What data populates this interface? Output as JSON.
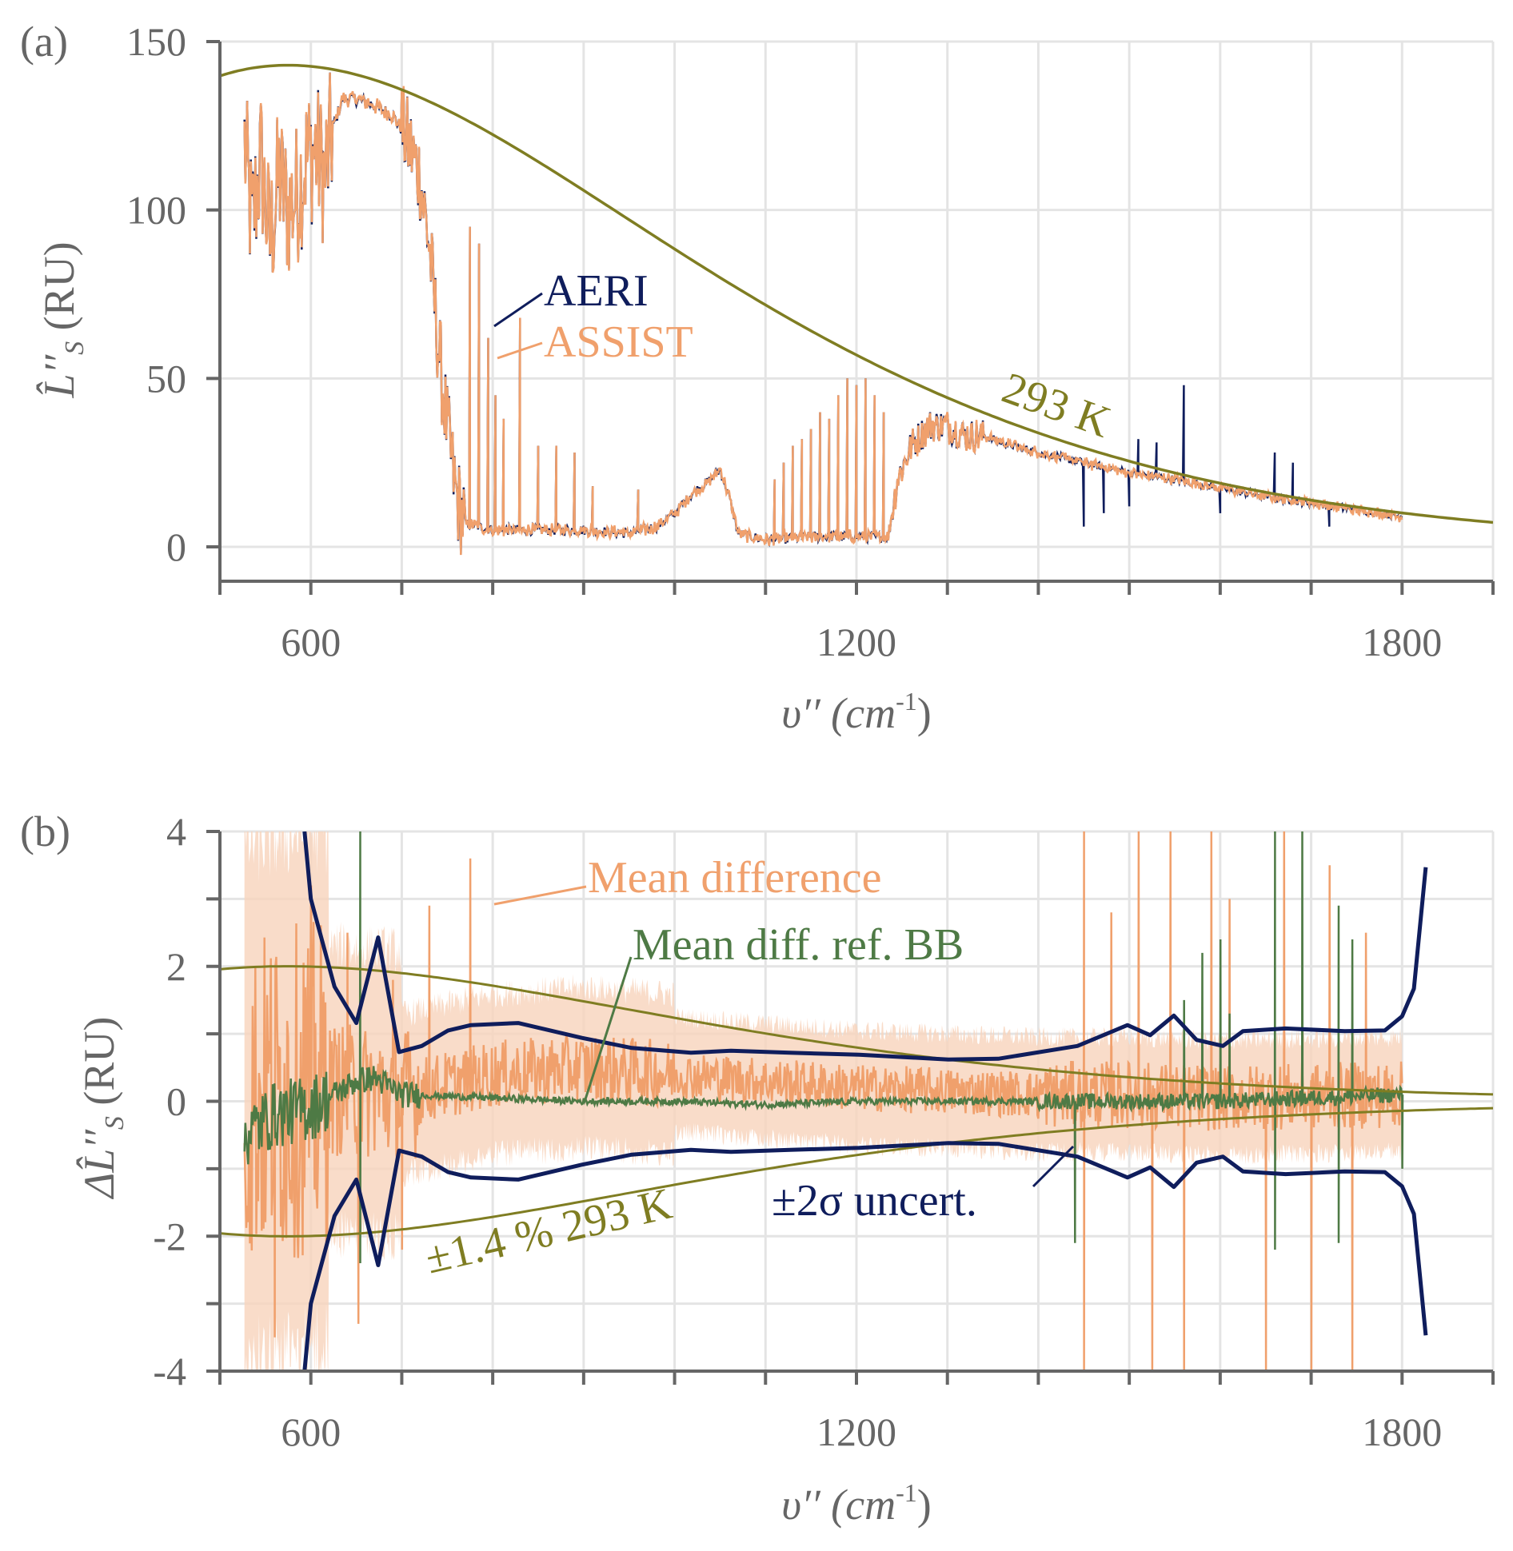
{
  "colors": {
    "aeri": "#0f1d5c",
    "assist": "#f0a06c",
    "planck": "#7f7d22",
    "ref_bb": "#4e7a45",
    "band": "#f7d3bc",
    "axis": "#666666",
    "grid": "#e4e4e4"
  },
  "chart_data": [
    {
      "panel_label": "(a)",
      "type": "line",
      "xlabel": "υ′′ (cm",
      "xlabel_sup": "-1",
      "xlabel_close": ")",
      "ylabel": "L̂′′",
      "ylabel_sub": "S",
      "ylabel_unit": " (RU)",
      "xlim": [
        500,
        1900
      ],
      "ylim": [
        -10,
        150
      ],
      "xticks": [
        600,
        1200,
        1800
      ],
      "yticks": [
        0,
        50,
        100,
        150
      ],
      "grid": true,
      "series": [
        {
          "name": "AERI",
          "baseline": [
            [
              527,
              120
            ],
            [
              535,
              95
            ],
            [
              545,
              115
            ],
            [
              555,
              90
            ],
            [
              565,
              110
            ],
            [
              575,
              100
            ],
            [
              585,
              105
            ],
            [
              595,
              115
            ],
            [
              605,
              118
            ],
            [
              615,
              110
            ],
            [
              625,
              125
            ],
            [
              635,
              133
            ],
            [
              650,
              133
            ],
            [
              670,
              131
            ],
            [
              690,
              128
            ],
            [
              700,
              124
            ],
            [
              710,
              118
            ],
            [
              720,
              110
            ],
            [
              730,
              90
            ],
            [
              740,
              60
            ],
            [
              750,
              35
            ],
            [
              760,
              15
            ],
            [
              770,
              7
            ],
            [
              800,
              5
            ],
            [
              850,
              5
            ],
            [
              900,
              5
            ],
            [
              950,
              4
            ],
            [
              980,
              6
            ],
            [
              1000,
              10
            ],
            [
              1020,
              16
            ],
            [
              1040,
              20
            ],
            [
              1050,
              23
            ],
            [
              1060,
              15
            ],
            [
              1070,
              4
            ],
            [
              1100,
              2
            ],
            [
              1150,
              3
            ],
            [
              1200,
              3
            ],
            [
              1235,
              3
            ],
            [
              1245,
              20
            ],
            [
              1260,
              30
            ],
            [
              1280,
              36
            ],
            [
              1300,
              36
            ],
            [
              1320,
              33
            ],
            [
              1340,
              33
            ],
            [
              1360,
              31
            ],
            [
              1400,
              28
            ],
            [
              1450,
              25
            ],
            [
              1500,
              22
            ],
            [
              1550,
              20
            ],
            [
              1600,
              17.5
            ],
            [
              1650,
              15
            ],
            [
              1700,
              13
            ],
            [
              1750,
              11
            ],
            [
              1800,
              9
            ]
          ],
          "spikes": [
            [
              775,
              95
            ],
            [
              785,
              90
            ],
            [
              795,
              62
            ],
            [
              803,
              45
            ],
            [
              812,
              38
            ],
            [
              830,
              68
            ],
            [
              850,
              30
            ],
            [
              870,
              30
            ],
            [
              890,
              28
            ],
            [
              910,
              18
            ],
            [
              960,
              17
            ],
            [
              1110,
              20
            ],
            [
              1120,
              25
            ],
            [
              1130,
              30
            ],
            [
              1140,
              32
            ],
            [
              1150,
              35
            ],
            [
              1160,
              40
            ],
            [
              1170,
              38
            ],
            [
              1180,
              45
            ],
            [
              1190,
              50
            ],
            [
              1200,
              48
            ],
            [
              1210,
              50
            ],
            [
              1220,
              45
            ],
            [
              1230,
              40
            ],
            [
              1450,
              6
            ],
            [
              1472,
              10
            ],
            [
              1500,
              12
            ],
            [
              1510,
              32
            ],
            [
              1530,
              31
            ],
            [
              1560,
              48
            ],
            [
              1600,
              10
            ],
            [
              1660,
              28
            ],
            [
              1680,
              25
            ],
            [
              1720,
              6
            ]
          ]
        },
        {
          "name": "ASSIST",
          "baseline_same_as": "AERI"
        },
        {
          "name": "293 K",
          "type": "planck",
          "temperature_K": 293
        }
      ],
      "annotations": {
        "aeri": "AERI",
        "assist": "ASSIST",
        "planck": "293 K"
      }
    },
    {
      "panel_label": "(b)",
      "type": "line",
      "xlabel": "υ′′ (cm",
      "xlabel_sup": "-1",
      "xlabel_close": ")",
      "ylabel": "ΔL̂′′",
      "ylabel_sub": "S",
      "ylabel_unit": " (RU)",
      "xlim": [
        500,
        1900
      ],
      "ylim": [
        -4,
        4
      ],
      "xticks": [
        600,
        1200,
        1800
      ],
      "yticks": [
        -4,
        -2,
        0,
        2,
        4
      ],
      "grid": true,
      "series": [
        {
          "name": "Mean difference",
          "baseline": [
            [
              527,
              0
            ],
            [
              600,
              0.2
            ],
            [
              700,
              0.1
            ],
            [
              800,
              0.4
            ],
            [
              900,
              0.5
            ],
            [
              1000,
              0.4
            ],
            [
              1100,
              0.3
            ],
            [
              1200,
              0.2
            ],
            [
              1300,
              0.15
            ],
            [
              1400,
              0.1
            ],
            [
              1500,
              0.1
            ],
            [
              1600,
              0.05
            ],
            [
              1800,
              0.1
            ]
          ],
          "spikes": [
            [
              560,
              -3.5
            ],
            [
              600,
              3.2
            ],
            [
              640,
              2.5
            ],
            [
              652,
              -3.3
            ],
            [
              690,
              1.8
            ],
            [
              700,
              -2.2
            ],
            [
              730,
              2.9
            ],
            [
              775,
              3.6
            ],
            [
              1450,
              4
            ],
            [
              1450,
              -4
            ],
            [
              1480,
              2.8
            ],
            [
              1510,
              4
            ],
            [
              1525,
              -4
            ],
            [
              1545,
              4
            ],
            [
              1560,
              -4
            ],
            [
              1590,
              4
            ],
            [
              1610,
              3
            ],
            [
              1650,
              -4
            ],
            [
              1670,
              4
            ],
            [
              1700,
              -4
            ],
            [
              1720,
              3.5
            ],
            [
              1745,
              -4
            ],
            [
              1760,
              2.5
            ]
          ]
        },
        {
          "name": "Mean diff. ref. BB",
          "baseline": [
            [
              527,
              -0.5
            ],
            [
              560,
              -0.2
            ],
            [
              600,
              -0.1
            ],
            [
              650,
              0.3
            ],
            [
              670,
              0.35
            ],
            [
              700,
              0.1
            ],
            [
              800,
              0.05
            ],
            [
              900,
              0
            ],
            [
              1000,
              0
            ],
            [
              1100,
              -0.05
            ],
            [
              1200,
              0
            ],
            [
              1400,
              0
            ],
            [
              1600,
              0
            ],
            [
              1800,
              0.1
            ]
          ],
          "spikes": [
            [
              654,
              4
            ],
            [
              654,
              -2.4
            ],
            [
              1440,
              -2.1
            ],
            [
              1560,
              1.5
            ],
            [
              1580,
              2.2
            ],
            [
              1600,
              2.4
            ],
            [
              1610,
              1.3
            ],
            [
              1660,
              4
            ],
            [
              1660,
              -2.2
            ],
            [
              1690,
              4
            ],
            [
              1730,
              2.9
            ],
            [
              1730,
              -2.1
            ],
            [
              1745,
              2.4
            ],
            [
              1800,
              -1
            ]
          ]
        },
        {
          "name": "±2σ uncert.",
          "upper": [
            [
              593,
              4
            ],
            [
              600,
              3.0
            ],
            [
              626,
              1.7
            ],
            [
              650,
              1.16
            ],
            [
              674,
              2.43
            ],
            [
              697,
              0.73
            ],
            [
              722,
              0.82
            ],
            [
              751,
              1.05
            ],
            [
              776,
              1.13
            ],
            [
              828,
              1.16
            ],
            [
              898,
              0.94
            ],
            [
              953,
              0.79
            ],
            [
              1018,
              0.72
            ],
            [
              1062,
              0.75
            ],
            [
              1127,
              0.72
            ],
            [
              1203,
              0.69
            ],
            [
              1301,
              0.62
            ],
            [
              1356,
              0.63
            ],
            [
              1443,
              0.82
            ],
            [
              1498,
              1.13
            ],
            [
              1523,
              0.98
            ],
            [
              1549,
              1.27
            ],
            [
              1574,
              0.91
            ],
            [
              1603,
              0.82
            ],
            [
              1625,
              1.04
            ],
            [
              1672,
              1.08
            ],
            [
              1737,
              1.04
            ],
            [
              1781,
              1.05
            ],
            [
              1800,
              1.26
            ],
            [
              1813,
              1.67
            ],
            [
              1826,
              3.47
            ]
          ],
          "symmetric": true
        },
        {
          "name": "±1.4 % 293 K",
          "type": "planck_fraction",
          "fraction_percent": 1.4,
          "temperature_K": 293
        }
      ],
      "annotations": {
        "mean_diff": "Mean difference",
        "ref_bb": "Mean diff. ref. BB",
        "uncert": "±2σ uncert.",
        "planck": "±1.4 % 293 K"
      }
    }
  ]
}
